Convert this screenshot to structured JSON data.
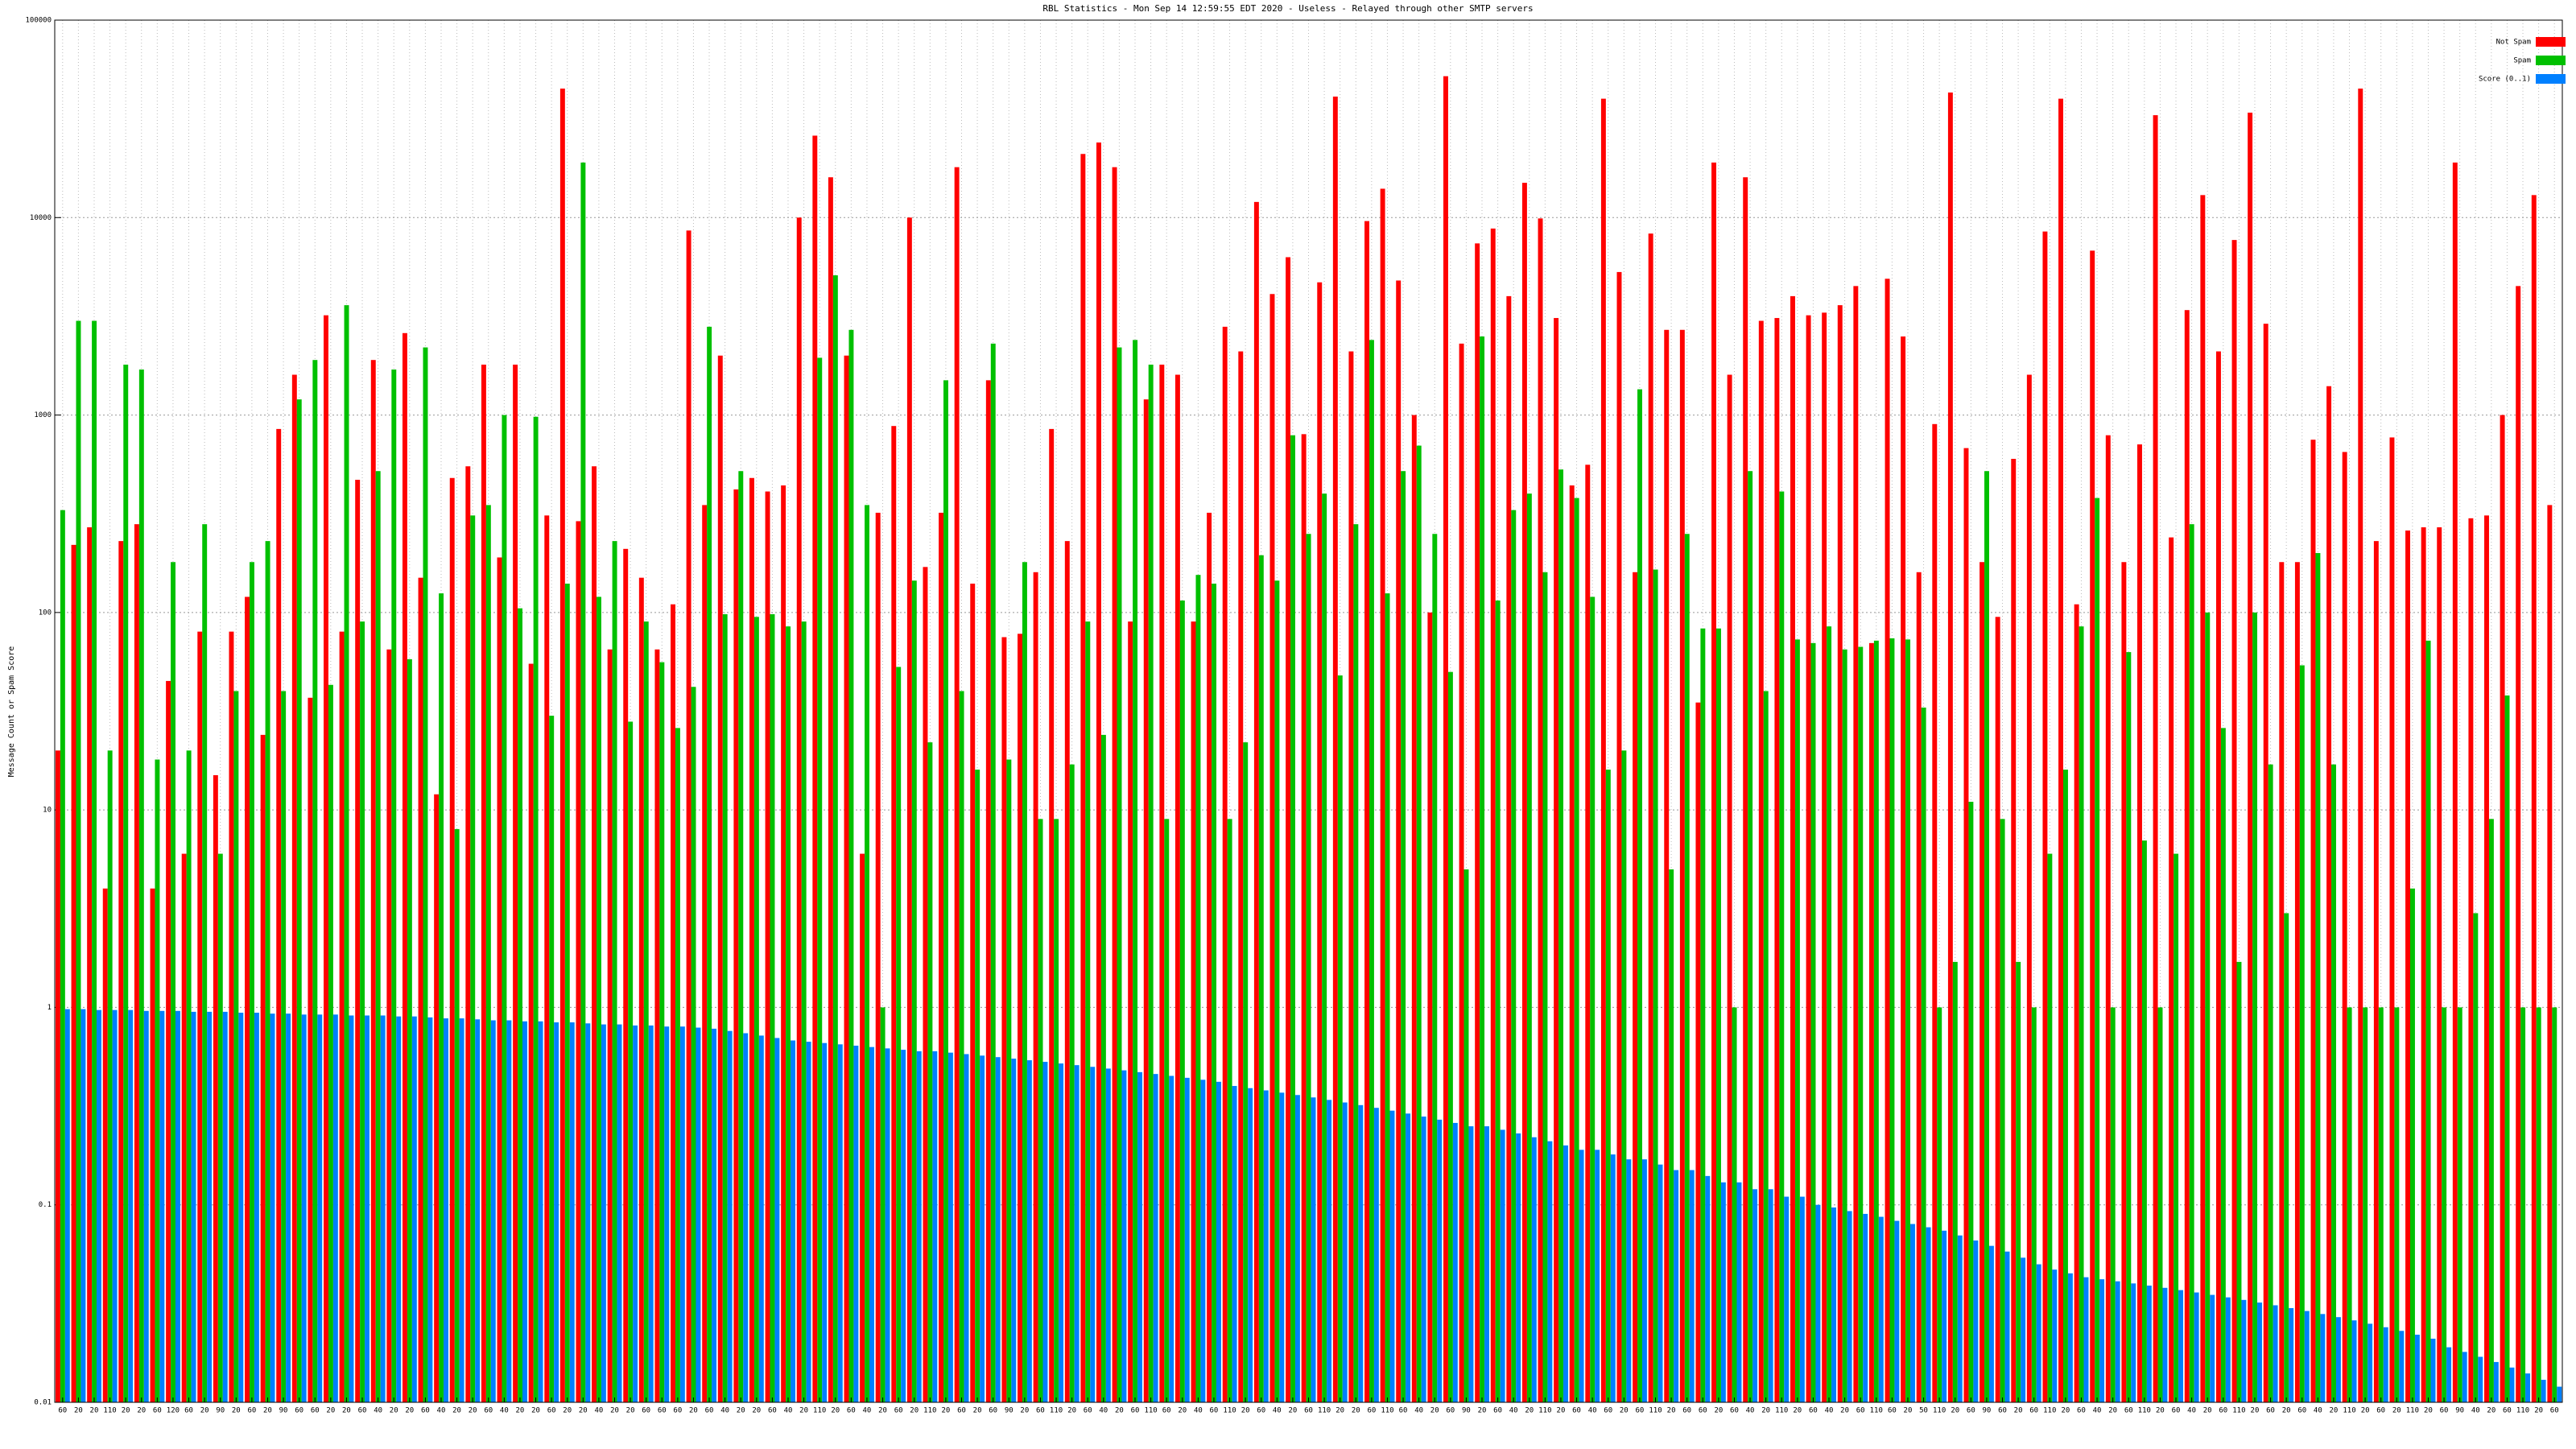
{
  "chart_data": {
    "type": "bar",
    "title": "RBL Statistics - Mon Sep 14 12:59:55 EDT 2020 - Useless - Relayed through other SMTP servers",
    "y_label": "Message Count or Spam Score",
    "log_scale": true,
    "grid": true,
    "legend": "top-right",
    "ylim": [
      0.01,
      100000
    ],
    "yticks": [
      0.01,
      0.1,
      1,
      10,
      100,
      1000,
      10000,
      100000
    ],
    "categories": [
      "60",
      "20",
      "20",
      "110",
      "20",
      "20",
      "60",
      "120",
      "60",
      "20",
      "90",
      "20",
      "60",
      "20",
      "90",
      "60",
      "60",
      "20",
      "20",
      "60",
      "40",
      "20",
      "20",
      "60",
      "40",
      "20",
      "20",
      "60",
      "40",
      "20",
      "20",
      "60",
      "20",
      "20",
      "40",
      "20",
      "20",
      "60",
      "60",
      "60",
      "20",
      "60",
      "40",
      "20",
      "20",
      "60",
      "40",
      "20",
      "110",
      "20",
      "60",
      "40",
      "20",
      "60",
      "20",
      "110",
      "20",
      "60",
      "20",
      "60",
      "90",
      "20",
      "60",
      "110",
      "20",
      "60",
      "40",
      "20",
      "60",
      "110",
      "60",
      "20",
      "40",
      "60",
      "110",
      "20",
      "60",
      "40",
      "20",
      "60",
      "110",
      "20",
      "20",
      "60",
      "110",
      "60",
      "40",
      "20",
      "60",
      "90",
      "20",
      "60",
      "40",
      "20",
      "110",
      "20",
      "60",
      "40",
      "60",
      "20",
      "60",
      "110",
      "20",
      "60",
      "60",
      "20",
      "60",
      "40",
      "20",
      "110",
      "20",
      "60",
      "40",
      "20",
      "60",
      "110",
      "60",
      "20",
      "50",
      "110",
      "20",
      "60",
      "90",
      "60",
      "20",
      "60",
      "110",
      "20",
      "60",
      "40",
      "20",
      "60",
      "110",
      "20",
      "60",
      "40",
      "20",
      "60",
      "110",
      "20",
      "60",
      "20",
      "60",
      "40",
      "20",
      "110",
      "20",
      "60",
      "20",
      "110",
      "20",
      "60",
      "90",
      "40",
      "20",
      "60",
      "110",
      "20",
      "60"
    ],
    "series": [
      {
        "name": "Not Spam",
        "color": "#ff0000",
        "values": [
          20,
          220,
          270,
          4,
          230,
          280,
          4,
          45,
          6,
          80,
          15,
          80,
          120,
          24,
          850,
          1600,
          37,
          3200,
          80,
          470,
          1900,
          65,
          2600,
          150,
          12,
          480,
          550,
          1800,
          190,
          1800,
          55,
          310,
          45000,
          290,
          550,
          65,
          210,
          150,
          65,
          110,
          8600,
          350,
          2000,
          420,
          480,
          410,
          440,
          10000,
          26000,
          16000,
          2000,
          6,
          320,
          880,
          10000,
          170,
          320,
          18000,
          140,
          1500,
          75,
          78,
          160,
          850,
          230,
          21000,
          24000,
          18000,
          90,
          1200,
          1800,
          1600,
          90,
          320,
          2800,
          2100,
          12000,
          4100,
          6300,
          800,
          4700,
          41000,
          2100,
          9600,
          14000,
          4800,
          1000,
          100,
          52000,
          2300,
          7400,
          8800,
          4000,
          15000,
          9900,
          3100,
          440,
          560,
          40000,
          5300,
          160,
          8300,
          2700,
          2700,
          35,
          19000,
          1600,
          16000,
          3000,
          3100,
          4000,
          3200,
          3300,
          3600,
          4500,
          70,
          4900,
          2500,
          160,
          900,
          43000,
          680,
          180,
          95,
          600,
          1600,
          8500,
          40000,
          110,
          6800,
          790,
          180,
          710,
          33000,
          240,
          3400,
          13000,
          2100,
          7700,
          34000,
          2900,
          180,
          180,
          750,
          1400,
          650,
          45000,
          230,
          770,
          260,
          270,
          270,
          19000,
          300,
          310,
          1000,
          4500,
          13000,
          350
        ]
      },
      {
        "name": "Spam",
        "color": "#00c000",
        "values": [
          330,
          3000,
          3000,
          20,
          1800,
          1700,
          18,
          180,
          20,
          280,
          6,
          40,
          180,
          230,
          40,
          1200,
          1900,
          43,
          3600,
          90,
          520,
          1700,
          58,
          2200,
          125,
          8,
          310,
          350,
          1000,
          105,
          980,
          30,
          140,
          19000,
          120,
          230,
          28,
          90,
          56,
          26,
          42,
          2800,
          98,
          520,
          95,
          98,
          85,
          90,
          1950,
          5100,
          2700,
          350,
          1,
          53,
          145,
          22,
          1500,
          40,
          16,
          2300,
          18,
          180,
          9,
          9,
          17,
          90,
          24,
          2200,
          2400,
          1800,
          9,
          115,
          155,
          140,
          9,
          22,
          195,
          145,
          790,
          250,
          400,
          48,
          280,
          2400,
          125,
          520,
          700,
          250,
          50,
          5,
          2500,
          115,
          330,
          400,
          160,
          530,
          380,
          120,
          16,
          20,
          1350,
          165,
          5,
          250,
          83,
          83,
          1,
          520,
          40,
          410,
          73,
          70,
          85,
          65,
          67,
          72,
          74,
          73,
          33,
          1,
          1.7,
          11,
          520,
          9,
          1.7,
          1,
          6,
          16,
          85,
          380,
          1,
          63,
          7,
          1,
          6,
          280,
          100,
          26,
          1.7,
          100,
          17,
          3,
          54,
          200,
          17,
          1,
          1,
          1,
          1,
          4,
          72,
          1,
          1,
          3,
          9,
          38,
          1,
          1,
          1
        ]
      },
      {
        "name": "Score (0..1)",
        "color": "#0080ff",
        "values": [
          0.98,
          0.98,
          0.97,
          0.97,
          0.97,
          0.96,
          0.96,
          0.96,
          0.95,
          0.95,
          0.95,
          0.94,
          0.94,
          0.93,
          0.93,
          0.92,
          0.92,
          0.92,
          0.91,
          0.91,
          0.91,
          0.9,
          0.9,
          0.89,
          0.88,
          0.88,
          0.87,
          0.86,
          0.86,
          0.85,
          0.85,
          0.84,
          0.84,
          0.83,
          0.82,
          0.82,
          0.81,
          0.81,
          0.8,
          0.8,
          0.79,
          0.78,
          0.76,
          0.74,
          0.72,
          0.7,
          0.68,
          0.67,
          0.66,
          0.65,
          0.64,
          0.63,
          0.62,
          0.61,
          0.6,
          0.6,
          0.59,
          0.58,
          0.57,
          0.56,
          0.55,
          0.54,
          0.53,
          0.52,
          0.51,
          0.5,
          0.49,
          0.48,
          0.47,
          0.46,
          0.45,
          0.44,
          0.43,
          0.42,
          0.4,
          0.39,
          0.38,
          0.37,
          0.36,
          0.35,
          0.34,
          0.33,
          0.32,
          0.31,
          0.3,
          0.29,
          0.28,
          0.27,
          0.26,
          0.25,
          0.25,
          0.24,
          0.23,
          0.22,
          0.21,
          0.2,
          0.19,
          0.19,
          0.18,
          0.17,
          0.17,
          0.16,
          0.15,
          0.15,
          0.14,
          0.13,
          0.13,
          0.12,
          0.12,
          0.11,
          0.11,
          0.1,
          0.097,
          0.093,
          0.09,
          0.087,
          0.083,
          0.08,
          0.077,
          0.074,
          0.07,
          0.066,
          0.062,
          0.058,
          0.054,
          0.05,
          0.047,
          0.045,
          0.043,
          0.042,
          0.041,
          0.04,
          0.039,
          0.038,
          0.037,
          0.036,
          0.035,
          0.034,
          0.033,
          0.032,
          0.031,
          0.03,
          0.029,
          0.028,
          0.027,
          0.026,
          0.025,
          0.024,
          0.023,
          0.022,
          0.021,
          0.019,
          0.018,
          0.017,
          0.016,
          0.015,
          0.014,
          0.013,
          0.012
        ]
      }
    ]
  }
}
